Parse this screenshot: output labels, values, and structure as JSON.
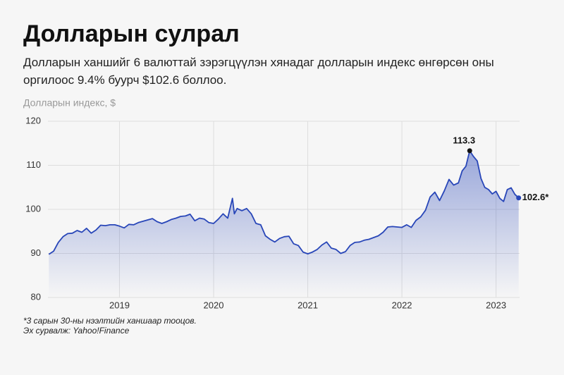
{
  "chart_data": {
    "type": "line",
    "title": "Долларын сулрал",
    "subtitle": "Долларын ханшийг 6 валюттай зэрэгцүүлэн хянадаг долларын индекс өнгөрсөн оны оргилоос 9.4% буурч $102.6 боллоо.",
    "y_label": "Долларын индекс, $",
    "footnote": "*3 сарын 30-ны нээлтийн ханшаар тооцов.",
    "source": "Эх сурвалж: Yahoo!Finance",
    "color": "#2846b8",
    "area": true,
    "grid": true,
    "x": [
      2018.25,
      2018.3,
      2018.35,
      2018.4,
      2018.45,
      2018.5,
      2018.55,
      2018.6,
      2018.65,
      2018.7,
      2018.75,
      2018.8,
      2018.85,
      2018.9,
      2018.95,
      2019.0,
      2019.05,
      2019.1,
      2019.15,
      2019.2,
      2019.25,
      2019.3,
      2019.35,
      2019.4,
      2019.45,
      2019.5,
      2019.55,
      2019.6,
      2019.65,
      2019.7,
      2019.75,
      2019.8,
      2019.85,
      2019.9,
      2019.95,
      2020.0,
      2020.05,
      2020.1,
      2020.15,
      2020.2,
      2020.22,
      2020.25,
      2020.3,
      2020.35,
      2020.4,
      2020.45,
      2020.5,
      2020.55,
      2020.6,
      2020.65,
      2020.7,
      2020.75,
      2020.8,
      2020.85,
      2020.9,
      2020.95,
      2021.0,
      2021.05,
      2021.1,
      2021.15,
      2021.2,
      2021.25,
      2021.3,
      2021.35,
      2021.4,
      2021.45,
      2021.5,
      2021.55,
      2021.6,
      2021.65,
      2021.7,
      2021.75,
      2021.8,
      2021.85,
      2021.9,
      2021.95,
      2022.0,
      2022.05,
      2022.1,
      2022.15,
      2022.2,
      2022.25,
      2022.3,
      2022.35,
      2022.4,
      2022.45,
      2022.5,
      2022.55,
      2022.6,
      2022.64,
      2022.68,
      2022.72,
      2022.76,
      2022.8,
      2022.84,
      2022.88,
      2022.92,
      2022.96,
      2023.0,
      2023.04,
      2023.08,
      2023.12,
      2023.16,
      2023.2,
      2023.24
    ],
    "values": [
      89.8,
      90.5,
      92.5,
      93.8,
      94.5,
      94.6,
      95.2,
      94.8,
      95.7,
      94.6,
      95.3,
      96.4,
      96.3,
      96.5,
      96.5,
      96.2,
      95.8,
      96.6,
      96.5,
      97.0,
      97.3,
      97.6,
      97.9,
      97.2,
      96.8,
      97.2,
      97.7,
      98.0,
      98.4,
      98.5,
      98.9,
      97.4,
      98.0,
      97.8,
      97.0,
      96.8,
      97.8,
      99.0,
      98.0,
      102.5,
      99.0,
      100.2,
      99.7,
      100.2,
      99.0,
      96.8,
      96.5,
      94.0,
      93.2,
      92.6,
      93.4,
      93.8,
      93.9,
      92.2,
      91.8,
      90.3,
      89.9,
      90.3,
      90.9,
      91.9,
      92.6,
      91.2,
      90.9,
      90.0,
      90.4,
      91.8,
      92.5,
      92.6,
      93.0,
      93.2,
      93.6,
      94.0,
      94.8,
      96.0,
      96.1,
      96.0,
      95.9,
      96.5,
      95.9,
      97.5,
      98.3,
      99.8,
      102.8,
      103.9,
      102.0,
      104.2,
      106.8,
      105.5,
      106.0,
      108.7,
      109.8,
      113.3,
      112.0,
      111.0,
      107.0,
      105.0,
      104.5,
      103.5,
      104.1,
      102.5,
      101.8,
      104.5,
      104.9,
      103.4,
      102.6
    ],
    "value_labels": [
      null,
      null,
      null,
      null,
      null,
      null,
      null,
      null,
      null,
      null,
      null,
      null,
      null,
      null,
      null,
      null,
      null,
      null,
      null,
      null,
      null,
      null,
      null,
      null,
      null,
      null,
      null,
      null,
      null,
      null,
      null,
      null,
      null,
      null,
      null,
      null,
      null,
      null,
      null,
      null,
      null,
      null,
      null,
      null,
      null,
      null,
      null,
      null,
      null,
      null,
      null,
      null,
      null,
      null,
      null,
      null,
      null,
      null,
      null,
      null,
      null,
      null,
      null,
      null,
      null,
      null,
      null,
      null,
      null,
      null,
      null,
      null,
      null,
      null,
      null,
      null,
      null,
      null,
      null,
      null,
      null,
      null,
      null,
      null,
      null,
      null,
      null,
      null,
      null,
      null,
      null,
      "113.3",
      null,
      null,
      null,
      null,
      null,
      null,
      null,
      null,
      null,
      null,
      null,
      null,
      "102.6*"
    ],
    "xlim": [
      2018.24,
      2023.25
    ],
    "xticks": [
      2019,
      2020,
      2021,
      2022,
      2023
    ],
    "ylim": [
      80,
      120
    ],
    "yticks": [
      80,
      90,
      100,
      110,
      120
    ]
  }
}
